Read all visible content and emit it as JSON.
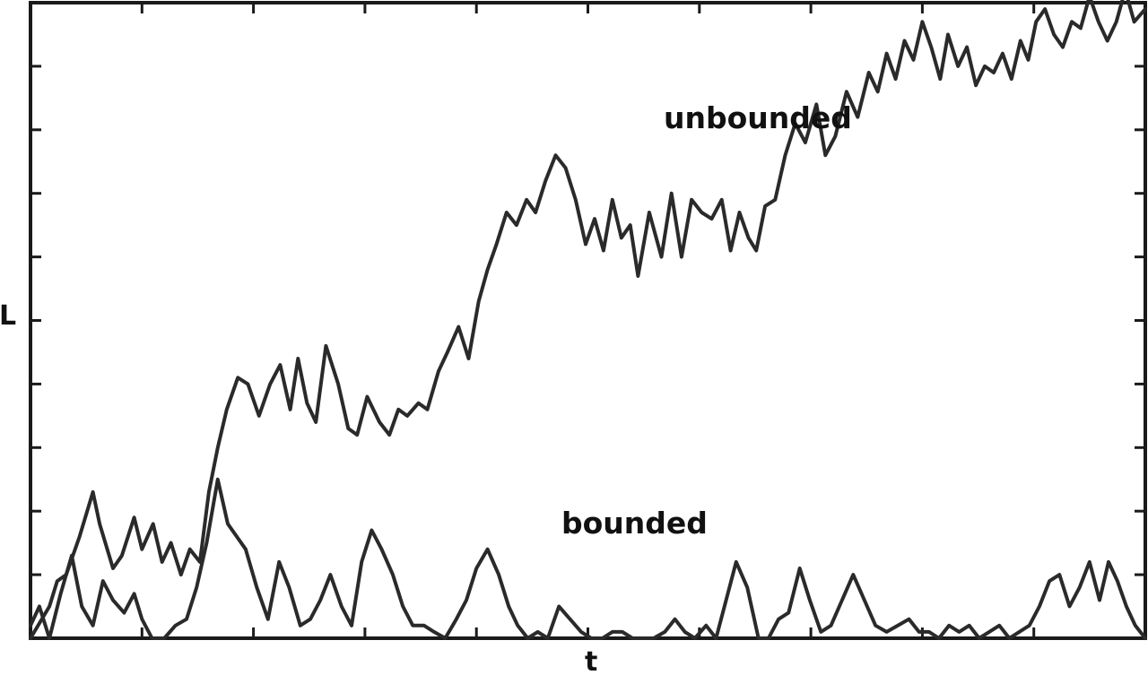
{
  "chart_data": {
    "type": "line",
    "xlabel": "t",
    "ylabel": "L",
    "xlim": [
      0,
      1
    ],
    "ylim": [
      0,
      1
    ],
    "grid": false,
    "legend": "none",
    "x_ticks": [
      0.1,
      0.2,
      0.3,
      0.4,
      0.5,
      0.6,
      0.7,
      0.8,
      0.9
    ],
    "y_ticks": [
      0.1,
      0.2,
      0.3,
      0.4,
      0.5,
      0.6,
      0.7,
      0.8,
      0.9
    ],
    "annotations": [
      {
        "text": "unbounded",
        "x": 0.57,
        "y": 0.81
      },
      {
        "text": "bounded",
        "x": 0.48,
        "y": 0.17
      }
    ],
    "series": [
      {
        "id": "unbounded",
        "color": "#2a2a2a",
        "x": [
          0,
          0.017,
          0.024,
          0.032,
          0.044,
          0.056,
          0.062,
          0.074,
          0.082,
          0.093,
          0.1,
          0.11,
          0.118,
          0.126,
          0.135,
          0.143,
          0.152,
          0.16,
          0.168,
          0.176,
          0.186,
          0.195,
          0.205,
          0.215,
          0.224,
          0.233,
          0.24,
          0.248,
          0.256,
          0.265,
          0.276,
          0.285,
          0.293,
          0.302,
          0.313,
          0.322,
          0.33,
          0.338,
          0.348,
          0.356,
          0.366,
          0.374,
          0.384,
          0.393,
          0.402,
          0.41,
          0.418,
          0.427,
          0.436,
          0.445,
          0.453,
          0.462,
          0.471,
          0.48,
          0.489,
          0.498,
          0.506,
          0.514,
          0.522,
          0.53,
          0.538,
          0.545,
          0.555,
          0.566,
          0.575,
          0.584,
          0.593,
          0.602,
          0.611,
          0.62,
          0.628,
          0.636,
          0.644,
          0.651,
          0.659,
          0.668,
          0.677,
          0.686,
          0.695,
          0.705,
          0.713,
          0.722,
          0.732,
          0.742,
          0.752,
          0.76,
          0.768,
          0.776,
          0.784,
          0.792,
          0.8,
          0.808,
          0.816,
          0.823,
          0.832,
          0.84,
          0.848,
          0.856,
          0.864,
          0.872,
          0.88,
          0.888,
          0.895,
          0.902,
          0.91,
          0.918,
          0.926,
          0.934,
          0.942,
          0.95,
          0.958,
          0.966,
          0.974,
          0.982,
          0.99,
          1
        ],
        "y": [
          0,
          0.05,
          0.09,
          0.1,
          0.16,
          0.23,
          0.18,
          0.11,
          0.13,
          0.19,
          0.14,
          0.18,
          0.12,
          0.15,
          0.1,
          0.14,
          0.12,
          0.23,
          0.3,
          0.36,
          0.41,
          0.4,
          0.35,
          0.4,
          0.43,
          0.36,
          0.44,
          0.37,
          0.34,
          0.46,
          0.4,
          0.33,
          0.32,
          0.38,
          0.34,
          0.32,
          0.36,
          0.35,
          0.37,
          0.36,
          0.42,
          0.45,
          0.49,
          0.44,
          0.53,
          0.58,
          0.62,
          0.67,
          0.65,
          0.69,
          0.67,
          0.72,
          0.76,
          0.74,
          0.69,
          0.62,
          0.66,
          0.61,
          0.69,
          0.63,
          0.65,
          0.57,
          0.67,
          0.6,
          0.7,
          0.6,
          0.69,
          0.67,
          0.66,
          0.69,
          0.61,
          0.67,
          0.63,
          0.61,
          0.68,
          0.69,
          0.76,
          0.81,
          0.78,
          0.84,
          0.76,
          0.79,
          0.86,
          0.82,
          0.89,
          0.86,
          0.92,
          0.88,
          0.94,
          0.91,
          0.97,
          0.93,
          0.88,
          0.95,
          0.9,
          0.93,
          0.87,
          0.9,
          0.89,
          0.92,
          0.88,
          0.94,
          0.91,
          0.97,
          0.99,
          0.95,
          0.93,
          0.97,
          0.96,
          1.01,
          0.97,
          0.94,
          0.97,
          1.02,
          0.97,
          0.99
        ]
      },
      {
        "id": "bounded",
        "color": "#2a2a2a",
        "x": [
          0,
          0.008,
          0.017,
          0.027,
          0.037,
          0.046,
          0.056,
          0.065,
          0.074,
          0.084,
          0.093,
          0.1,
          0.109,
          0.12,
          0.13,
          0.14,
          0.149,
          0.158,
          0.168,
          0.177,
          0.185,
          0.193,
          0.203,
          0.213,
          0.223,
          0.232,
          0.242,
          0.251,
          0.26,
          0.269,
          0.279,
          0.288,
          0.297,
          0.306,
          0.315,
          0.325,
          0.334,
          0.343,
          0.353,
          0.362,
          0.372,
          0.382,
          0.391,
          0.4,
          0.41,
          0.42,
          0.429,
          0.437,
          0.446,
          0.455,
          0.464,
          0.474,
          0.484,
          0.494,
          0.503,
          0.513,
          0.522,
          0.531,
          0.54,
          0.549,
          0.559,
          0.569,
          0.578,
          0.587,
          0.596,
          0.606,
          0.615,
          0.624,
          0.633,
          0.643,
          0.653,
          0.662,
          0.671,
          0.68,
          0.69,
          0.699,
          0.709,
          0.718,
          0.728,
          0.738,
          0.748,
          0.758,
          0.768,
          0.778,
          0.788,
          0.797,
          0.806,
          0.815,
          0.824,
          0.833,
          0.842,
          0.851,
          0.86,
          0.869,
          0.878,
          0.887,
          0.896,
          0.905,
          0.914,
          0.923,
          0.932,
          0.941,
          0.95,
          0.959,
          0.967,
          0.975,
          0.983,
          0.991,
          1
        ],
        "y": [
          0.02,
          0.05,
          0,
          0.07,
          0.13,
          0.05,
          0.02,
          0.09,
          0.06,
          0.04,
          0.07,
          0.03,
          0,
          0,
          0.02,
          0.03,
          0.08,
          0.15,
          0.25,
          0.18,
          0.16,
          0.14,
          0.08,
          0.03,
          0.12,
          0.08,
          0.02,
          0.03,
          0.06,
          0.1,
          0.05,
          0.02,
          0.12,
          0.17,
          0.14,
          0.1,
          0.05,
          0.02,
          0.02,
          0.01,
          0,
          0.03,
          0.06,
          0.11,
          0.14,
          0.1,
          0.05,
          0.02,
          0,
          0.01,
          0,
          0.05,
          0.03,
          0.01,
          0,
          0,
          0.01,
          0.01,
          0,
          0,
          0,
          0.01,
          0.03,
          0.01,
          0,
          0.02,
          0,
          0.06,
          0.12,
          0.08,
          0,
          0,
          0.03,
          0.04,
          0.11,
          0.06,
          0.01,
          0.02,
          0.06,
          0.1,
          0.06,
          0.02,
          0.01,
          0.02,
          0.03,
          0.01,
          0.01,
          0,
          0.02,
          0.01,
          0.02,
          0,
          0.01,
          0.02,
          0,
          0.01,
          0.02,
          0.05,
          0.09,
          0.1,
          0.05,
          0.08,
          0.12,
          0.06,
          0.12,
          0.09,
          0.05,
          0.02,
          0
        ]
      }
    ]
  }
}
